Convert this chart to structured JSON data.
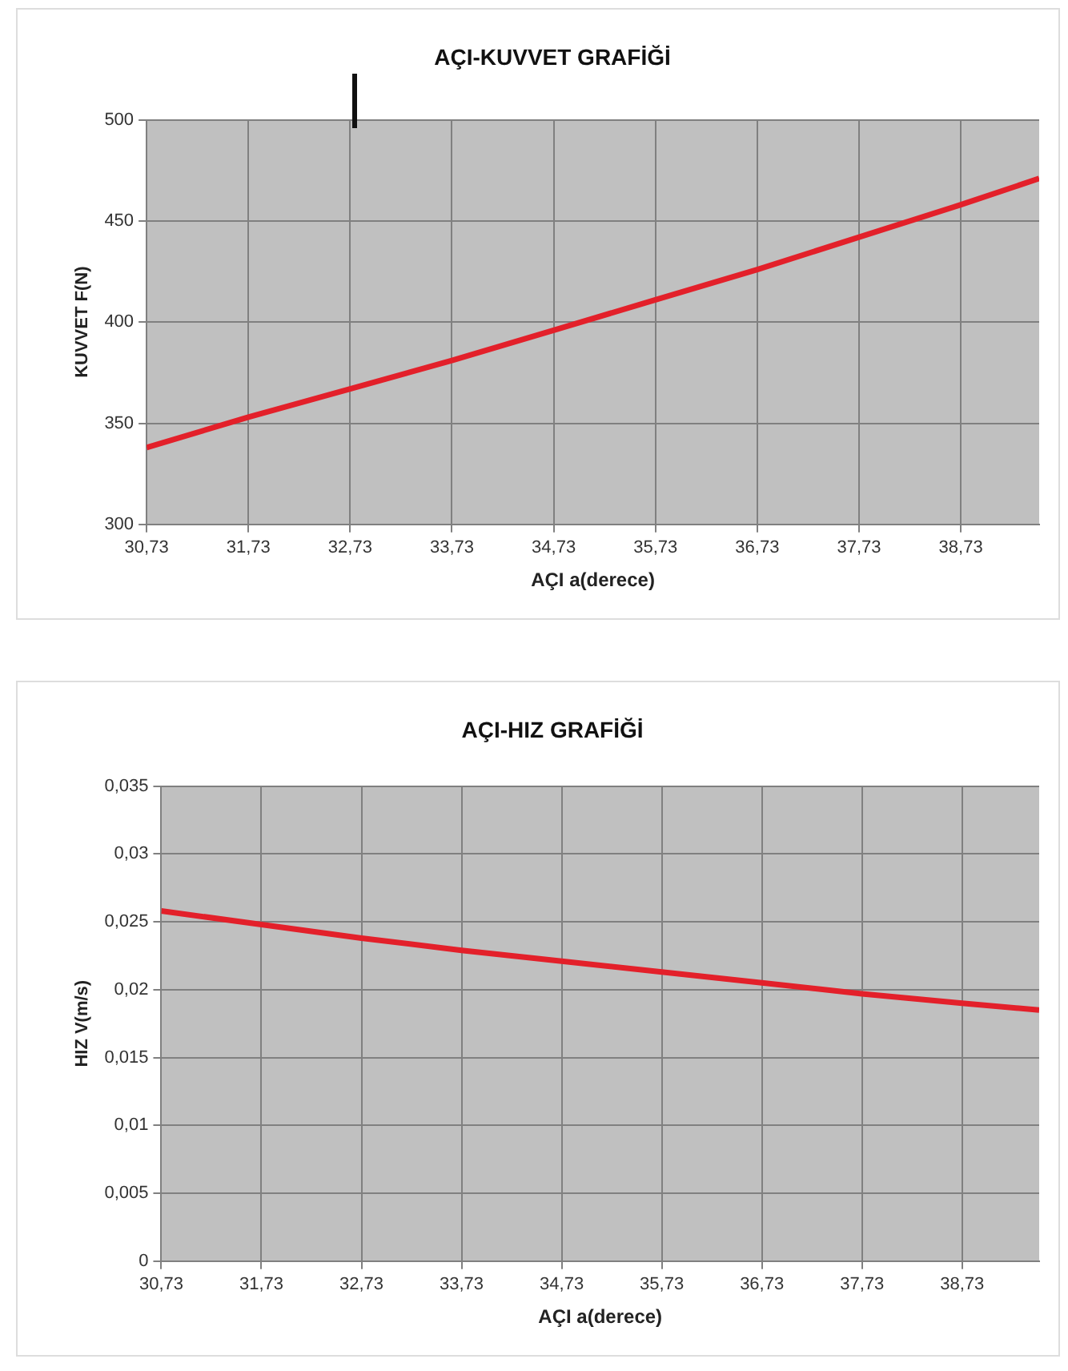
{
  "chart_data": [
    {
      "type": "line",
      "title": "AÇI-KUVVET GRAFİĞİ",
      "xlabel": "AÇI a(derece)",
      "ylabel": "KUVVET F(N)",
      "x": [
        30.73,
        31.73,
        32.73,
        33.73,
        34.73,
        35.73,
        36.73,
        37.73,
        38.73,
        39.5
      ],
      "series": [
        {
          "color": "#e3202a",
          "values": [
            338,
            353,
            367,
            381,
            396,
            411,
            426,
            442,
            458,
            471
          ]
        }
      ],
      "xlim": [
        30.73,
        39.5
      ],
      "xticks": [
        {
          "value": 30.73,
          "label": "30,73"
        },
        {
          "value": 31.73,
          "label": "31,73"
        },
        {
          "value": 32.73,
          "label": "32,73"
        },
        {
          "value": 33.73,
          "label": "33,73"
        },
        {
          "value": 34.73,
          "label": "34,73"
        },
        {
          "value": 35.73,
          "label": "35,73"
        },
        {
          "value": 36.73,
          "label": "36,73"
        },
        {
          "value": 37.73,
          "label": "37,73"
        },
        {
          "value": 38.73,
          "label": "38,73"
        }
      ],
      "ylim": [
        300,
        500
      ],
      "yticks": [
        300,
        350,
        400,
        450,
        500
      ],
      "grid": true,
      "legend": false,
      "marker": "none",
      "line_style": "solid"
    },
    {
      "type": "line",
      "title": "AÇI-HIZ GRAFİĞİ",
      "xlabel": "AÇI a(derece)",
      "ylabel": "HIZ V(m/s)",
      "x": [
        30.73,
        31.73,
        32.73,
        33.73,
        34.73,
        35.73,
        36.73,
        37.73,
        38.73,
        39.5
      ],
      "series": [
        {
          "color": "#e3202a",
          "values": [
            0.0258,
            0.0248,
            0.0238,
            0.0229,
            0.0221,
            0.0213,
            0.0205,
            0.0197,
            0.019,
            0.0185
          ]
        }
      ],
      "xlim": [
        30.73,
        39.5
      ],
      "xticks": [
        {
          "value": 30.73,
          "label": "30,73"
        },
        {
          "value": 31.73,
          "label": "31,73"
        },
        {
          "value": 32.73,
          "label": "32,73"
        },
        {
          "value": 33.73,
          "label": "33,73"
        },
        {
          "value": 34.73,
          "label": "34,73"
        },
        {
          "value": 35.73,
          "label": "35,73"
        },
        {
          "value": 36.73,
          "label": "36,73"
        },
        {
          "value": 37.73,
          "label": "37,73"
        },
        {
          "value": 38.73,
          "label": "38,73"
        }
      ],
      "ylim": [
        0,
        0.035
      ],
      "yticks": [
        0,
        {
          "value": 0.005,
          "label": "0,005"
        },
        {
          "value": 0.01,
          "label": "0,01"
        },
        {
          "value": 0.015,
          "label": "0,015"
        },
        {
          "value": 0.02,
          "label": "0,02"
        },
        {
          "value": 0.025,
          "label": "0,025"
        },
        {
          "value": 0.03,
          "label": "0,03"
        },
        {
          "value": 0.035,
          "label": "0,035"
        }
      ],
      "grid": true,
      "legend": false,
      "marker": "none",
      "line_style": "solid"
    }
  ]
}
